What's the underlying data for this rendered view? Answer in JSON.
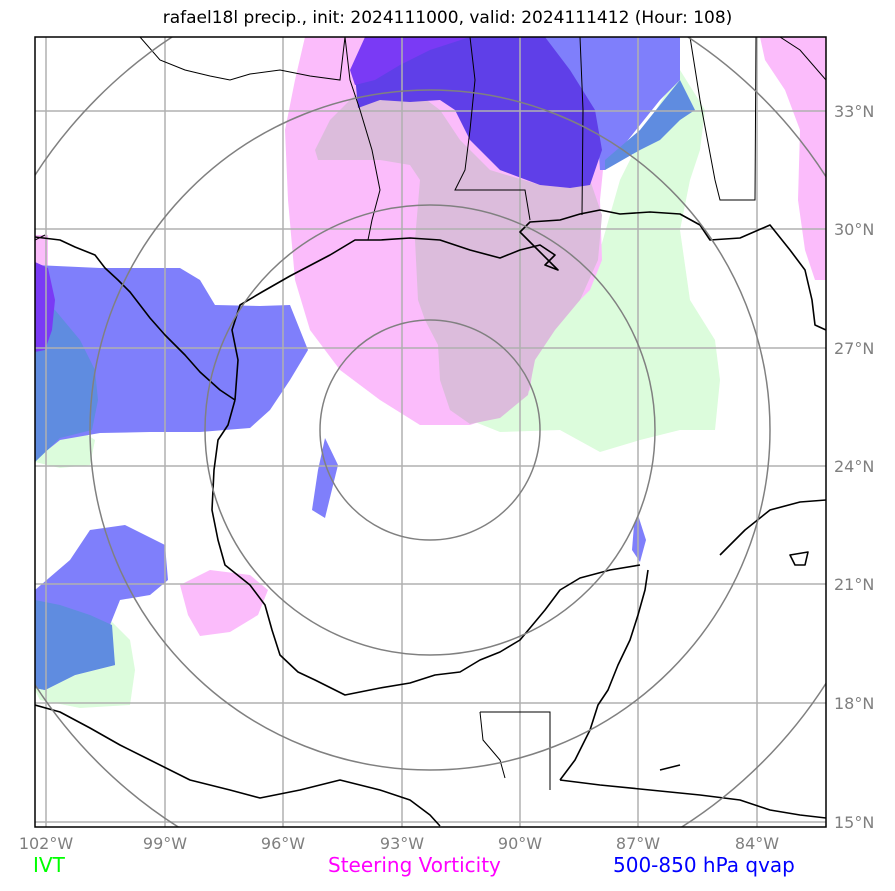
{
  "title": "rafael18l precip., init: 2024111000, valid: 2024111412 (Hour: 108)",
  "x_ticks": [
    "102°W",
    "99°W",
    "96°W",
    "93°W",
    "90°W",
    "87°W",
    "84°W"
  ],
  "y_ticks": [
    "33°N",
    "30°N",
    "27°N",
    "24°N",
    "21°N",
    "18°N",
    "15°N"
  ],
  "legend": [
    {
      "label": "IVT",
      "color": "#00ff00"
    },
    {
      "label": "Steering Vorticity",
      "color": "#ff00ff"
    },
    {
      "label": "500-850 hPa qvap",
      "color": "#0000ff"
    }
  ],
  "colors": {
    "ivt_fill": "#dcfcdc",
    "vorticity_fill": "#fbbcfb",
    "overlap_fill": "#dcbcdc",
    "qvap_fill": "#7f7ffb",
    "qvap_dark": "#5f3fe8",
    "qvap_deep": "#7a3af5",
    "qvap_ivt": "#5f8ce0",
    "grid": "#b0b0b0",
    "rings": "#808080",
    "coast": "#000000"
  }
}
